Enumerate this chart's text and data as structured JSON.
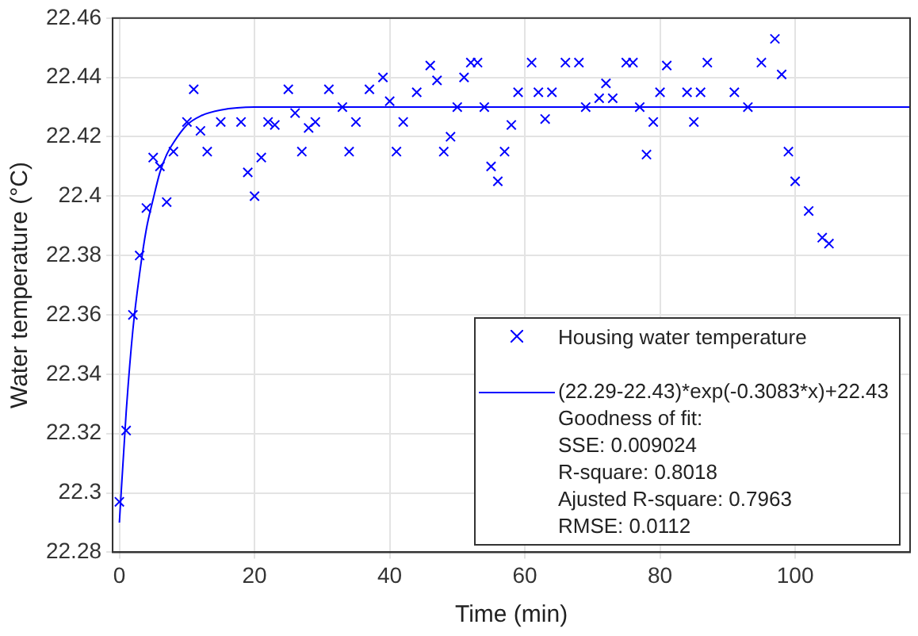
{
  "chart_data": {
    "type": "scatter",
    "xlabel": "Time (min)",
    "ylabel": "Water temperature (°C)",
    "xlim": [
      -1,
      117
    ],
    "xticks": [
      0,
      20,
      40,
      60,
      80,
      100
    ],
    "ylim": [
      22.28,
      22.46
    ],
    "yticks": [
      22.28,
      22.3,
      22.32,
      22.34,
      22.36,
      22.38,
      22.4,
      22.42,
      22.44,
      22.46
    ],
    "grid": true,
    "legend": "bottom right",
    "series": [
      {
        "name": "Housing water temperature",
        "marker": "cross",
        "color": "#0000ff",
        "x": [
          0,
          1,
          2,
          3,
          4,
          5,
          6,
          7,
          8,
          10,
          11,
          12,
          13,
          15,
          18,
          19,
          20,
          21,
          22,
          23,
          25,
          26,
          27,
          28,
          29,
          31,
          33,
          34,
          35,
          37,
          39,
          40,
          41,
          42,
          44,
          46,
          47,
          48,
          49,
          50,
          51,
          52,
          53,
          54,
          55,
          56,
          57,
          58,
          59,
          61,
          62,
          63,
          64,
          66,
          68,
          69,
          71,
          72,
          73,
          75,
          76,
          77,
          78,
          79,
          80,
          81,
          84,
          85,
          86,
          87,
          91,
          93,
          95,
          97,
          98,
          99,
          100,
          102,
          104,
          105
        ],
        "values": [
          22.297,
          22.321,
          22.36,
          22.38,
          22.396,
          22.413,
          22.41,
          22.398,
          22.415,
          22.425,
          22.436,
          22.422,
          22.415,
          22.425,
          22.425,
          22.408,
          22.4,
          22.413,
          22.425,
          22.424,
          22.436,
          22.428,
          22.415,
          22.423,
          22.425,
          22.436,
          22.43,
          22.415,
          22.425,
          22.436,
          22.44,
          22.432,
          22.415,
          22.425,
          22.435,
          22.444,
          22.439,
          22.415,
          22.42,
          22.43,
          22.44,
          22.445,
          22.445,
          22.43,
          22.41,
          22.405,
          22.415,
          22.424,
          22.435,
          22.445,
          22.435,
          22.426,
          22.435,
          22.445,
          22.445,
          22.43,
          22.433,
          22.438,
          22.433,
          22.445,
          22.445,
          22.43,
          22.414,
          22.425,
          22.435,
          22.444,
          22.435,
          22.425,
          22.435,
          22.445,
          22.435,
          22.43,
          22.445,
          22.453,
          22.441,
          22.415,
          22.405,
          22.395,
          22.386,
          22.384
        ]
      },
      {
        "name": "(22.29-22.43)*exp(-0.3083*x)+22.43",
        "type": "line",
        "marker": "none",
        "line_style": "solid",
        "color": "#0000ff",
        "x": [
          0,
          1,
          2,
          3,
          4,
          5,
          6,
          7,
          8,
          10,
          12,
          15,
          20,
          30,
          117
        ],
        "values": [
          22.29,
          22.327,
          22.355,
          22.374,
          22.389,
          22.399,
          22.408,
          22.414,
          22.418,
          22.424,
          22.427,
          22.429,
          22.43,
          22.43,
          22.43
        ]
      }
    ],
    "annotations": [
      "Goodness of fit:",
      "SSE: 0.009024",
      "R-square: 0.8018",
      "Ajusted R-square: 0.7963",
      "RMSE: 0.0112"
    ]
  }
}
